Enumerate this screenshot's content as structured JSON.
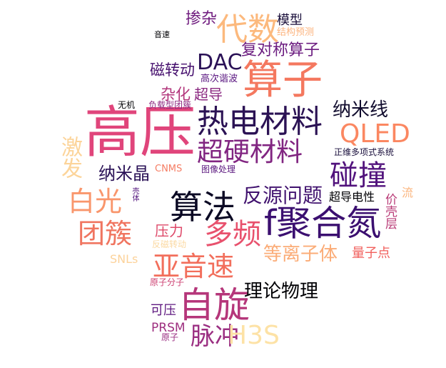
{
  "words": [
    {
      "text": "高压",
      "color": "#e0457b"
    },
    {
      "text": "热电材料",
      "color": "#2b1254"
    },
    {
      "text": "超硬材料",
      "color": "#812581"
    },
    {
      "text": "算子",
      "color": "#f4785f"
    },
    {
      "text": "代数",
      "color": "#fcb97d"
    },
    {
      "text": "f聚合氮",
      "color": "#3b0f70"
    },
    {
      "text": "算法",
      "color": "#0b0924"
    },
    {
      "text": "自旋",
      "color": "#b5367a"
    },
    {
      "text": "QLED",
      "color": "#fb8761"
    },
    {
      "text": "碰撞",
      "color": "#51127c"
    },
    {
      "text": "多频",
      "color": "#e8516d"
    },
    {
      "text": "白光",
      "color": "#f9966c"
    },
    {
      "text": "团簇",
      "color": "#f07560"
    },
    {
      "text": "亚音速",
      "color": "#f26f5c"
    },
    {
      "text": "脉冲",
      "color": "#9b2f82"
    },
    {
      "text": "H3S",
      "color": "#fde2a6"
    },
    {
      "text": "DAC",
      "color": "#2a1156"
    },
    {
      "text": "激发",
      "color": "#fcd49a"
    },
    {
      "text": "反源问题",
      "color": "#40116e"
    },
    {
      "text": "等离子体",
      "color": "#fbac77"
    },
    {
      "text": "纳米线",
      "color": "#100b2d"
    },
    {
      "text": "理论物理",
      "color": "#000004"
    },
    {
      "text": "复对称算子",
      "color": "#6c1d80"
    },
    {
      "text": "纳米晶",
      "color": "#2a1156"
    },
    {
      "text": "磁转动",
      "color": "#46106e"
    },
    {
      "text": "掺杂",
      "color": "#711e80"
    },
    {
      "text": "模型",
      "color": "#190e3a"
    },
    {
      "text": "杂化",
      "color": "#b2357b"
    },
    {
      "text": "超导",
      "color": "#8b2981"
    },
    {
      "text": "压力",
      "color": "#de4969"
    },
    {
      "text": "可压",
      "color": "#5e177f"
    },
    {
      "text": "PRSM",
      "color": "#9e2f7f"
    },
    {
      "text": "超导电性",
      "color": "#000004"
    },
    {
      "text": "量子点",
      "color": "#f1605d"
    },
    {
      "text": "价壳层",
      "color": "#b93b77"
    },
    {
      "text": "正维多项式系统",
      "color": "#1a0f3d"
    },
    {
      "text": "CNMS",
      "color": "#f57d64"
    },
    {
      "text": "图像处理",
      "color": "#5a167e"
    },
    {
      "text": "高次谐波",
      "color": "#591580"
    },
    {
      "text": "负载型团簇",
      "color": "#8c2981"
    },
    {
      "text": "结构预测",
      "color": "#fcb47f"
    },
    {
      "text": "音速",
      "color": "#000004"
    },
    {
      "text": "无机",
      "color": "#000004"
    },
    {
      "text": "SNLs",
      "color": "#fcd29a"
    },
    {
      "text": "反磁转动",
      "color": "#fbd9a2"
    },
    {
      "text": "原子分子",
      "color": "#cd4072"
    },
    {
      "text": "原子",
      "color": "#9b2f82"
    },
    {
      "text": "流",
      "color": "#fbb57e"
    },
    {
      "text": "壳体",
      "color": "#51127c"
    }
  ]
}
